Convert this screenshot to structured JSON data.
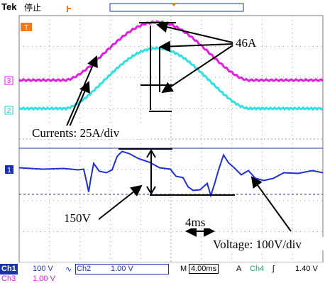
{
  "header": {
    "brand": "Tek",
    "status": "停止"
  },
  "markers": {
    "trigger": "T",
    "ch3": "3",
    "ch2": "2",
    "ch1": "1"
  },
  "annotations": {
    "current_peak": "46A",
    "current_scale": "Currents: 25A/div",
    "voltage_peak": "150V",
    "time_span": "4ms",
    "voltage_scale": "Voltage: 100V/div"
  },
  "bottom": {
    "ch1_tag": "Ch1",
    "ch1_scale": "100 V",
    "ch1_coupling": "∿",
    "ch2_tag": "Ch2",
    "ch2_scale": "1.00 V",
    "horiz": "M",
    "timebase": "4.00ms",
    "acq": "A",
    "trig_tag": "Ch4",
    "trig_slope": "ʃ",
    "trig_level": "1.40 V",
    "ch3_tag": "Ch3",
    "ch3_scale": "1.00 V"
  },
  "colors": {
    "ch1": "#1f2fd6",
    "ch2": "#33e0e0",
    "ch3": "#e020e0",
    "trigger_marker": "#f07a1a",
    "label_blue": "#1a33a8"
  }
}
